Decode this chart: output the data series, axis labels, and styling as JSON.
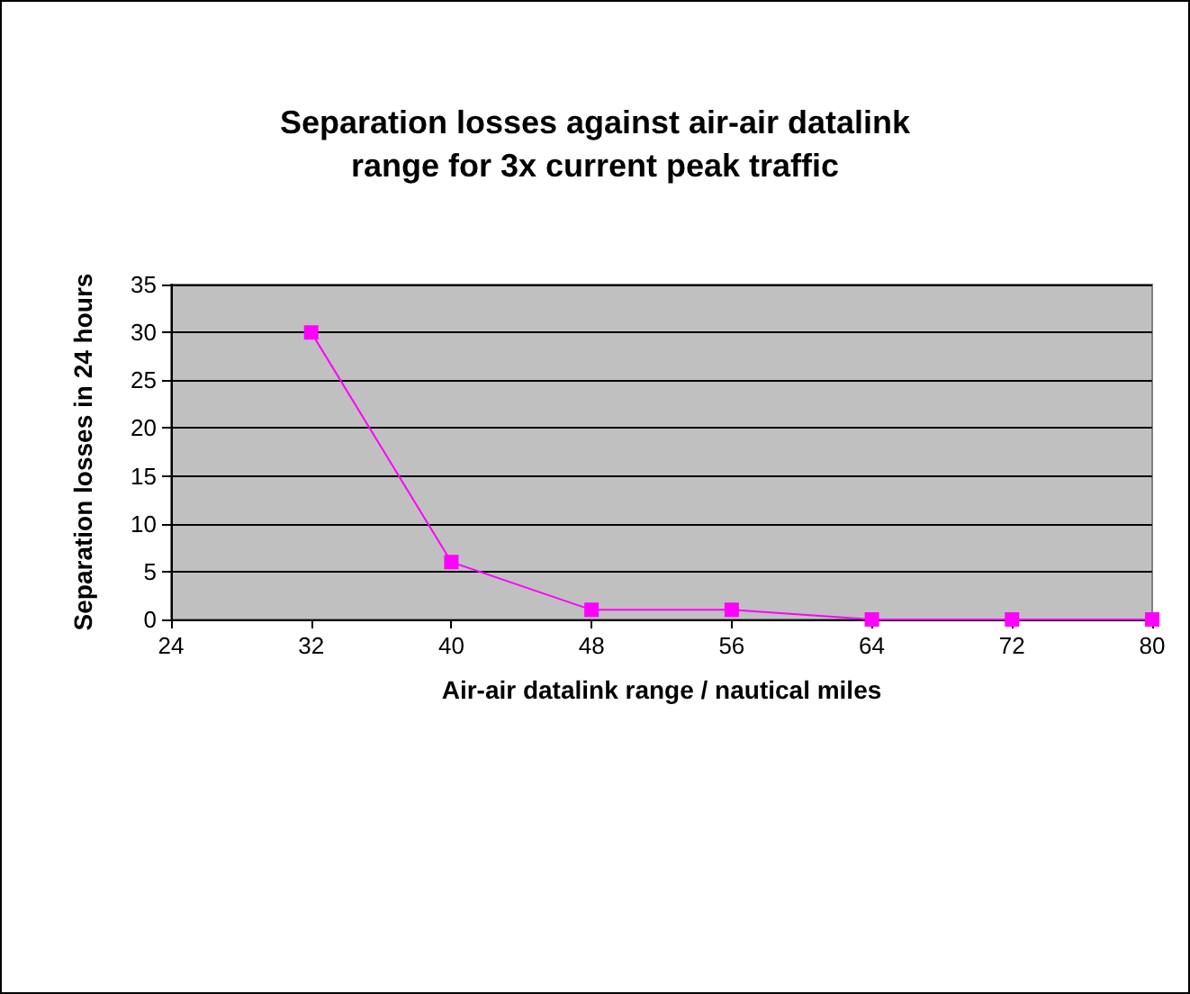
{
  "chart_data": {
    "type": "line",
    "title": "Separation losses against air-air datalink\nrange for 3x current peak traffic",
    "xlabel": "Air-air datalink range / nautical miles",
    "ylabel": "Separation losses in 24 hours",
    "x": [
      32,
      40,
      48,
      56,
      64,
      72,
      80
    ],
    "series": [
      {
        "color": "#ff00ff",
        "values": [
          30,
          6,
          1,
          1,
          0,
          0,
          0
        ]
      }
    ],
    "xlim": [
      24,
      80
    ],
    "xticks": [
      24,
      32,
      40,
      48,
      56,
      64,
      72,
      80
    ],
    "ylim": [
      0,
      35
    ],
    "yticks": [
      0,
      5,
      10,
      15,
      20,
      25,
      30,
      35
    ],
    "grid": "y",
    "marker": "square",
    "line_style": "solid"
  }
}
